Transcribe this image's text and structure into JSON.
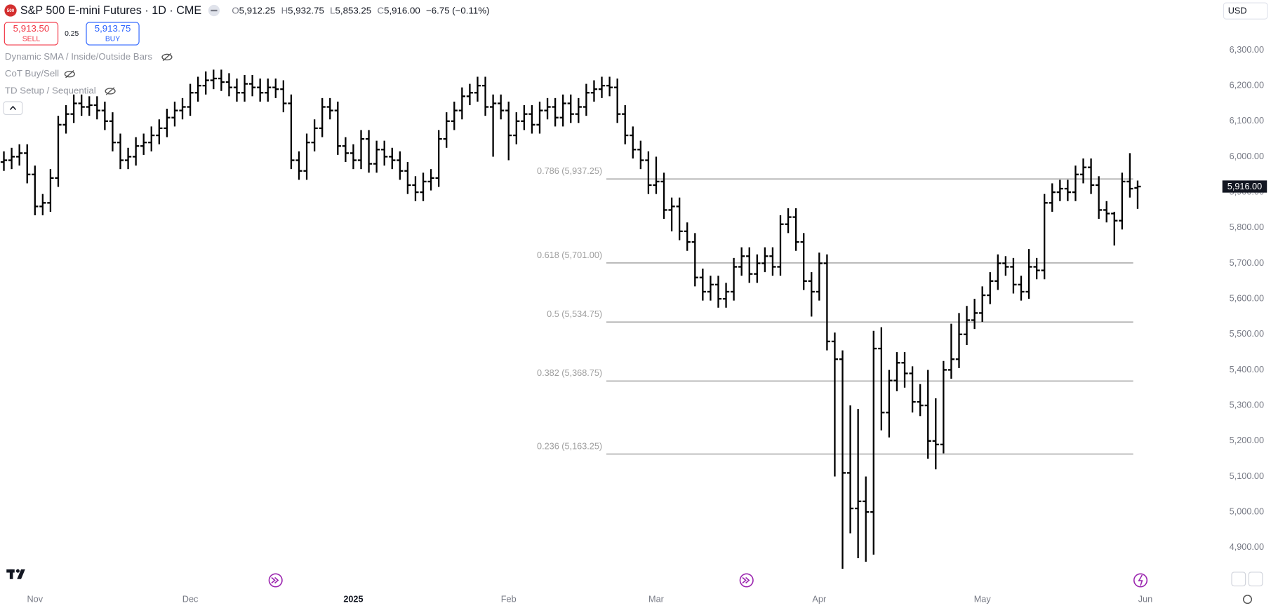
{
  "header": {
    "logo": "500",
    "symbol": "S&P 500 E-mini Futures · 1D · CME",
    "fields": [
      {
        "key": "O",
        "value": "5,912.25"
      },
      {
        "key": "H",
        "value": "5,932.75"
      },
      {
        "key": "L",
        "value": "5,853.25"
      },
      {
        "key": "C",
        "value": "5,916.00"
      }
    ],
    "change": "−6.75 (−0.11%)",
    "currency": "USD"
  },
  "trade": {
    "sell_price": "5,913.50",
    "sell": "SELL",
    "spread": "0.25",
    "buy_price": "5,913.75",
    "buy": "BUY"
  },
  "indicators": [
    "Dynamic SMA / Inside/Outside Bars",
    "CoT Buy/Sell",
    "TD Setup / Sequential"
  ],
  "chart_data": {
    "type": "ohlc",
    "color": "#000000",
    "categories": [
      null,
      null,
      null,
      null,
      "Nov",
      null,
      null,
      null,
      null,
      null,
      null,
      null,
      null,
      null,
      null,
      null,
      null,
      null,
      null,
      null,
      null,
      null,
      null,
      null,
      "Dec",
      null,
      null,
      null,
      null,
      null,
      null,
      null,
      null,
      null,
      null,
      null,
      null,
      null,
      null,
      null,
      null,
      null,
      null,
      null,
      null,
      "2025",
      null,
      null,
      null,
      null,
      null,
      null,
      null,
      null,
      null,
      null,
      null,
      null,
      null,
      null,
      null,
      null,
      null,
      null,
      null,
      "Feb",
      null,
      null,
      null,
      null,
      null,
      null,
      null,
      null,
      null,
      null,
      null,
      null,
      null,
      null,
      null,
      null,
      null,
      null,
      "Mar",
      null,
      null,
      null,
      null,
      null,
      null,
      null,
      null,
      null,
      null,
      null,
      null,
      null,
      null,
      null,
      null,
      null,
      null,
      null,
      null,
      "Apr",
      null,
      null,
      null,
      null,
      null,
      null,
      null,
      null,
      null,
      null,
      null,
      null,
      null,
      null,
      null,
      null,
      null,
      null,
      null,
      null,
      "May",
      null,
      null,
      null,
      null,
      null,
      null,
      null,
      null,
      null,
      null,
      null,
      null,
      null,
      null,
      null,
      null,
      null,
      null,
      null,
      null,
      "Jun"
    ],
    "open": [
      5985,
      5990,
      6000,
      6010,
      5950,
      5860,
      5870,
      5940,
      6090,
      6120,
      6150,
      6140,
      6145,
      6130,
      6100,
      6040,
      5990,
      6000,
      6030,
      6040,
      6060,
      6080,
      6110,
      6130,
      6140,
      6180,
      6200,
      6215,
      6220,
      6210,
      6195,
      6180,
      6205,
      6195,
      6180,
      6195,
      6190,
      6150,
      5990,
      5960,
      6040,
      6080,
      6140,
      6130,
      6030,
      6010,
      5990,
      6050,
      5980,
      6020,
      6000,
      5990,
      5960,
      5920,
      5900,
      5930,
      5940,
      6050,
      6100,
      6130,
      6170,
      6180,
      6200,
      6140,
      6150,
      6130,
      6060,
      6100,
      6120,
      6090,
      6130,
      6140,
      6110,
      6150,
      6120,
      6140,
      6180,
      6190,
      6200,
      6195,
      6120,
      6060,
      6020,
      5990,
      5920,
      5930,
      5850,
      5860,
      5790,
      5760,
      5660,
      5620,
      5640,
      5600,
      5620,
      5690,
      5720,
      5670,
      5700,
      5720,
      5690,
      5810,
      5830,
      5760,
      5650,
      5620,
      5700,
      5480,
      5430,
      5110,
      5010,
      5030,
      5000,
      5460,
      5280,
      5370,
      5420,
      5390,
      5310,
      5300,
      5200,
      5190,
      5400,
      5430,
      5500,
      5540,
      5560,
      5610,
      5650,
      5700,
      5690,
      5640,
      5620,
      5690,
      5680,
      5870,
      5900,
      5910,
      5900,
      5950,
      5970,
      5920,
      5850,
      5840,
      5820,
      5930,
      5912.25,
      null
    ],
    "high": [
      6015,
      6025,
      6035,
      6035,
      5975,
      5895,
      5965,
      6115,
      6145,
      6175,
      6175,
      6170,
      6170,
      6155,
      6125,
      6065,
      6025,
      6055,
      6065,
      6085,
      6105,
      6135,
      6155,
      6165,
      6205,
      6225,
      6240,
      6245,
      6245,
      6235,
      6220,
      6230,
      6230,
      6220,
      6220,
      6220,
      6215,
      6175,
      6015,
      6065,
      6105,
      6165,
      6165,
      6155,
      6055,
      6035,
      6075,
      6075,
      6045,
      6045,
      6025,
      6015,
      5985,
      5945,
      5955,
      5965,
      6075,
      6125,
      6155,
      6195,
      6205,
      6225,
      6225,
      6175,
      6175,
      6155,
      6125,
      6145,
      6145,
      6155,
      6165,
      6165,
      6175,
      6175,
      6165,
      6205,
      6215,
      6225,
      6225,
      6220,
      6145,
      6085,
      6045,
      6015,
      6000,
      5955,
      5885,
      5885,
      5815,
      5785,
      5685,
      5665,
      5665,
      5645,
      5715,
      5745,
      5745,
      5725,
      5745,
      5745,
      5835,
      5855,
      5855,
      5785,
      5675,
      5730,
      5725,
      5505,
      5455,
      5300,
      5290,
      5100,
      5510,
      5520,
      5400,
      5450,
      5450,
      5410,
      5360,
      5400,
      5320,
      5425,
      5530,
      5560,
      5580,
      5600,
      5635,
      5675,
      5725,
      5720,
      5715,
      5665,
      5740,
      5715,
      5895,
      5925,
      5935,
      5935,
      5975,
      5995,
      5995,
      5945,
      5875,
      5845,
      5955,
      6010,
      5932.75,
      null
    ],
    "low": [
      5960,
      5965,
      5975,
      5925,
      5835,
      5835,
      5845,
      5915,
      6065,
      6095,
      6115,
      6115,
      6105,
      6075,
      6015,
      5965,
      5965,
      5975,
      6005,
      6015,
      6035,
      6055,
      6085,
      6105,
      6115,
      6155,
      6175,
      6190,
      6185,
      6170,
      6155,
      6155,
      6170,
      6155,
      6155,
      6165,
      6125,
      5965,
      5935,
      5935,
      6015,
      6055,
      6105,
      6005,
      5985,
      5965,
      5965,
      5955,
      5955,
      5975,
      5965,
      5935,
      5895,
      5875,
      5875,
      5905,
      5915,
      6025,
      6075,
      6105,
      6145,
      6155,
      6115,
      6000,
      6105,
      5990,
      6035,
      6075,
      6065,
      6065,
      6105,
      6085,
      6085,
      6095,
      6095,
      6115,
      6155,
      6165,
      6170,
      6095,
      6035,
      5995,
      5965,
      5895,
      5895,
      5825,
      5790,
      5765,
      5735,
      5635,
      5595,
      5595,
      5575,
      5575,
      5595,
      5665,
      5645,
      5645,
      5675,
      5665,
      5665,
      5785,
      5735,
      5625,
      5550,
      5595,
      5455,
      5100,
      4840,
      4940,
      4870,
      4860,
      4880,
      5230,
      5210,
      5340,
      5350,
      5280,
      5270,
      5150,
      5120,
      5165,
      5375,
      5405,
      5470,
      5515,
      5535,
      5585,
      5625,
      5665,
      5615,
      5595,
      5600,
      5655,
      5655,
      5845,
      5875,
      5875,
      5875,
      5925,
      5895,
      5825,
      5815,
      5750,
      5795,
      5885,
      5853.25,
      null
    ],
    "close": [
      5990,
      6000,
      6010,
      5950,
      5860,
      5870,
      5940,
      6090,
      6120,
      6150,
      6140,
      6145,
      6130,
      6100,
      6040,
      5990,
      6000,
      6030,
      6040,
      6060,
      6080,
      6110,
      6130,
      6140,
      6180,
      6200,
      6215,
      6220,
      6210,
      6195,
      6180,
      6205,
      6195,
      6180,
      6195,
      6190,
      6150,
      5990,
      5960,
      6040,
      6080,
      6140,
      6130,
      6030,
      6010,
      5990,
      6050,
      5980,
      6020,
      6000,
      5990,
      5960,
      5920,
      5900,
      5930,
      5940,
      6050,
      6100,
      6130,
      6170,
      6180,
      6200,
      6140,
      6150,
      6130,
      6060,
      6100,
      6120,
      6090,
      6130,
      6140,
      6110,
      6150,
      6120,
      6140,
      6180,
      6190,
      6200,
      6195,
      6120,
      6060,
      6020,
      5990,
      5920,
      5930,
      5850,
      5860,
      5790,
      5760,
      5660,
      5620,
      5640,
      5600,
      5620,
      5690,
      5720,
      5670,
      5700,
      5720,
      5690,
      5810,
      5830,
      5760,
      5650,
      5620,
      5700,
      5480,
      5430,
      5110,
      5010,
      5030,
      5000,
      5460,
      5280,
      5370,
      5420,
      5390,
      5310,
      5300,
      5200,
      5190,
      5400,
      5430,
      5500,
      5540,
      5560,
      5610,
      5650,
      5700,
      5690,
      5640,
      5620,
      5690,
      5680,
      5870,
      5900,
      5910,
      5900,
      5950,
      5970,
      5920,
      5850,
      5840,
      5820,
      5930,
      5910,
      5916,
      null
    ],
    "ylim": [
      4777,
      6441
    ],
    "yticks": [
      {
        "value": 4900,
        "label": "4,900.00"
      },
      {
        "value": 5000,
        "label": "5,000.00"
      },
      {
        "value": 5100,
        "label": "5,100.00"
      },
      {
        "value": 5200,
        "label": "5,200.00"
      },
      {
        "value": 5300,
        "label": "5,300.00"
      },
      {
        "value": 5400,
        "label": "5,400.00"
      },
      {
        "value": 5500,
        "label": "5,500.00"
      },
      {
        "value": 5600,
        "label": "5,600.00"
      },
      {
        "value": 5700,
        "label": "5,700.00"
      },
      {
        "value": 5800,
        "label": "5,800.00"
      },
      {
        "value": 5900,
        "label": "5,900.00"
      },
      {
        "value": 6000,
        "label": "6,000.00"
      },
      {
        "value": 6100,
        "label": "6,100.00"
      },
      {
        "value": 6200,
        "label": "6,200.00"
      },
      {
        "value": 6300,
        "label": "6,300.00"
      }
    ],
    "fib_levels": [
      {
        "value": 5937.25,
        "label": "0.786 (5,937.25)"
      },
      {
        "value": 5701,
        "label": "0.618 (5,701.00)"
      },
      {
        "value": 5534.75,
        "label": "0.5 (5,534.75)"
      },
      {
        "value": 5368.75,
        "label": "0.382 (5,368.75)"
      },
      {
        "value": 5163.25,
        "label": "0.236 (5,163.25)"
      }
    ],
    "fib_color": "#9e9e9e"
  }
}
